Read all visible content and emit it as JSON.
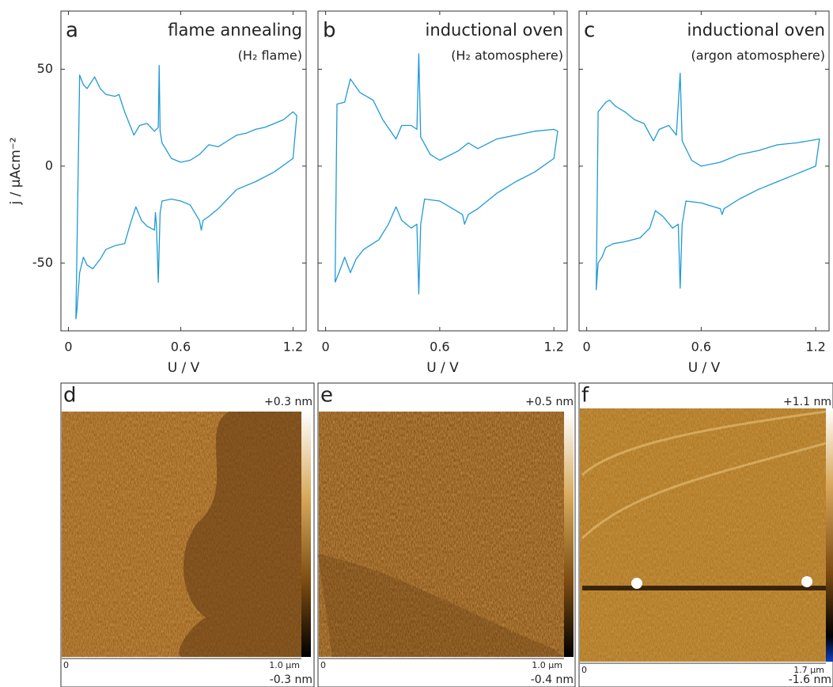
{
  "chart_data": [
    {
      "type": "line",
      "panel": "a",
      "title": "flame annealing",
      "subtitle": "(H₂ flame)",
      "x_label": "U / V",
      "y_label": "j / µAcm⁻²",
      "color": "#1f9ad6",
      "xlim": [
        -0.04,
        1.27
      ],
      "ylim": [
        -85,
        80
      ],
      "xticks": [
        0,
        0.6,
        1.2
      ],
      "yticks": [
        50,
        0,
        -50
      ],
      "x": [
        0.04,
        0.06,
        0.08,
        0.1,
        0.14,
        0.17,
        0.2,
        0.25,
        0.27,
        0.3,
        0.35,
        0.38,
        0.42,
        0.46,
        0.48,
        0.485,
        0.49,
        0.5,
        0.55,
        0.6,
        0.65,
        0.7,
        0.75,
        0.8,
        0.85,
        0.9,
        0.95,
        1.0,
        1.05,
        1.1,
        1.15,
        1.2,
        1.22,
        1.2,
        1.1,
        1.0,
        0.9,
        0.85,
        0.8,
        0.75,
        0.72,
        0.71,
        0.7,
        0.65,
        0.6,
        0.55,
        0.5,
        0.49,
        0.48,
        0.47,
        0.465,
        0.46,
        0.42,
        0.39,
        0.36,
        0.33,
        0.3,
        0.25,
        0.2,
        0.17,
        0.13,
        0.1,
        0.08,
        0.06,
        0.045,
        0.04
      ],
      "values": [
        -79,
        47,
        42,
        40,
        46,
        40,
        37,
        36,
        37,
        28,
        16,
        21,
        22,
        18,
        20,
        52,
        18,
        12,
        4,
        2,
        3,
        6,
        11,
        10,
        13,
        16,
        17,
        19,
        20,
        22,
        24,
        28,
        26,
        4,
        -3,
        -8,
        -12,
        -17,
        -22,
        -26,
        -28,
        -33,
        -28,
        -20,
        -18,
        -17,
        -18,
        -24,
        -60,
        -30,
        -24,
        -33,
        -31,
        -28,
        -21,
        -30,
        -40,
        -41,
        -43,
        -48,
        -53,
        -51,
        -47,
        -55,
        -75,
        -79
      ]
    },
    {
      "type": "line",
      "panel": "b",
      "title": "inductional oven",
      "subtitle": "(H₂ atomosphere)",
      "x_label": "U / V",
      "color": "#1f9ad6",
      "xlim": [
        -0.04,
        1.27
      ],
      "ylim": [
        -85,
        80
      ],
      "xticks": [
        0,
        0.6,
        1.2
      ],
      "yticks": [
        50,
        0,
        -50
      ],
      "x": [
        0.05,
        0.06,
        0.1,
        0.13,
        0.18,
        0.25,
        0.3,
        0.37,
        0.4,
        0.45,
        0.48,
        0.49,
        0.5,
        0.55,
        0.6,
        0.7,
        0.75,
        0.8,
        0.9,
        1.0,
        1.1,
        1.2,
        1.22,
        1.2,
        1.1,
        1.0,
        0.9,
        0.8,
        0.75,
        0.73,
        0.72,
        0.6,
        0.52,
        0.5,
        0.49,
        0.48,
        0.45,
        0.4,
        0.37,
        0.33,
        0.28,
        0.2,
        0.16,
        0.13,
        0.1,
        0.07,
        0.05
      ],
      "values": [
        -60,
        32,
        33,
        45,
        38,
        34,
        24,
        14,
        21,
        21,
        19,
        58,
        15,
        6,
        3,
        8,
        12,
        9,
        14,
        16,
        18,
        19,
        18,
        4,
        -3,
        -8,
        -14,
        -22,
        -25,
        -30,
        -25,
        -18,
        -17,
        -30,
        -66,
        -30,
        -32,
        -28,
        -21,
        -30,
        -38,
        -43,
        -48,
        -55,
        -47,
        -55,
        -60
      ]
    },
    {
      "type": "line",
      "panel": "c",
      "title": "inductional oven",
      "subtitle": "(argon atomosphere)",
      "x_label": "U / V",
      "color": "#1f9ad6",
      "xlim": [
        -0.04,
        1.27
      ],
      "ylim": [
        -85,
        80
      ],
      "xticks": [
        0,
        0.6,
        1.2
      ],
      "yticks": [
        50,
        0,
        -50
      ],
      "x": [
        0.05,
        0.06,
        0.1,
        0.12,
        0.15,
        0.2,
        0.25,
        0.3,
        0.35,
        0.38,
        0.43,
        0.47,
        0.49,
        0.5,
        0.55,
        0.6,
        0.7,
        0.8,
        0.9,
        1.0,
        1.1,
        1.22,
        1.2,
        1.1,
        1.0,
        0.9,
        0.8,
        0.72,
        0.71,
        0.7,
        0.6,
        0.52,
        0.5,
        0.49,
        0.48,
        0.45,
        0.4,
        0.36,
        0.33,
        0.28,
        0.2,
        0.14,
        0.1,
        0.08,
        0.06,
        0.05
      ],
      "values": [
        -64,
        28,
        33,
        34,
        31,
        28,
        24,
        22,
        13,
        19,
        21,
        16,
        48,
        13,
        3,
        0,
        2,
        6,
        8,
        11,
        12,
        14,
        0,
        -4,
        -8,
        -12,
        -17,
        -22,
        -25,
        -22,
        -19,
        -18,
        -30,
        -63,
        -30,
        -32,
        -26,
        -23,
        -32,
        -37,
        -39,
        -40,
        -42,
        -47,
        -50,
        -64
      ]
    }
  ],
  "afm_images": [
    {
      "panel": "d",
      "max_label": "+0.3 nm",
      "min_label": "-0.3 nm",
      "scale_start": "0",
      "scale_end": "1.0 µm"
    },
    {
      "panel": "e",
      "max_label": "+0.5 nm",
      "min_label": "-0.4 nm",
      "scale_start": "0",
      "scale_end": "1.0 µm"
    },
    {
      "panel": "f",
      "max_label": "+1.1 nm",
      "min_label": "-1.6 nm",
      "scale_start": "0",
      "scale_end": "1.7 µm"
    }
  ]
}
